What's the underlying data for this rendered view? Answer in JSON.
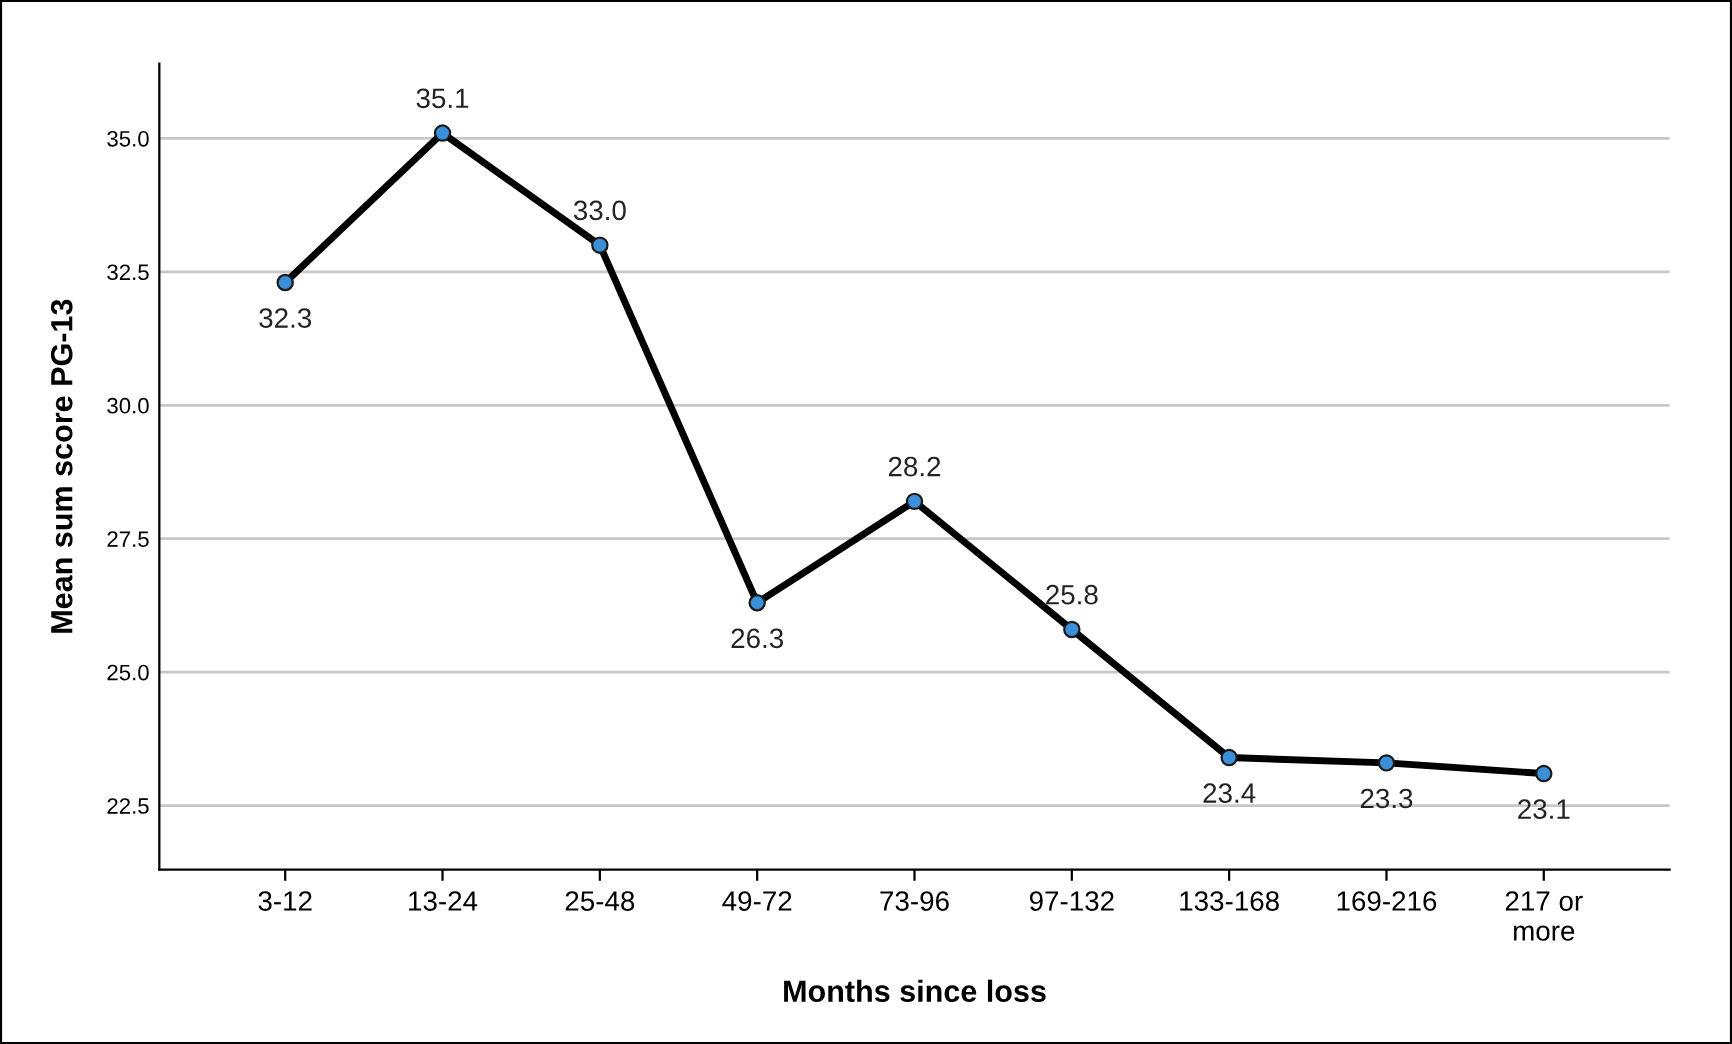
{
  "chart_data": {
    "type": "line",
    "xlabel": "Months since loss",
    "ylabel": "Mean sum score PG-13",
    "categories": [
      "3-12",
      "13-24",
      "25-48",
      "49-72",
      "73-96",
      "97-132",
      "133-168",
      "169-216",
      "217 or\nmore"
    ],
    "series": [
      {
        "color": "#000000",
        "colors": [
          "#3a8fd8",
          "#3a8fd8",
          "#3a8fd8",
          "#3a8fd8",
          "#3a8fd8",
          "#3a8fd8",
          "#3a8fd8",
          "#3a8fd8",
          "#3a8fd8"
        ],
        "values": [
          32.3,
          35.1,
          33.0,
          26.3,
          28.2,
          25.8,
          23.4,
          23.3,
          23.1
        ],
        "value_labels": [
          "32.3",
          "35.1",
          "33.0",
          "26.3",
          "28.2",
          "25.8",
          "23.4",
          "23.3",
          "23.1"
        ]
      }
    ],
    "ylim": [
      21.3,
      36.4
    ],
    "yticks": [
      {
        "value": 22.5,
        "label": "22.5"
      },
      {
        "value": 25,
        "label": "25.0"
      },
      {
        "value": 27.5,
        "label": "27.5"
      },
      {
        "value": 30,
        "label": "30.0"
      },
      {
        "value": 32.5,
        "label": "32.5"
      },
      {
        "value": 35,
        "label": "35.0"
      }
    ],
    "grid": "y",
    "marker": "circle",
    "line_style": "solid"
  }
}
